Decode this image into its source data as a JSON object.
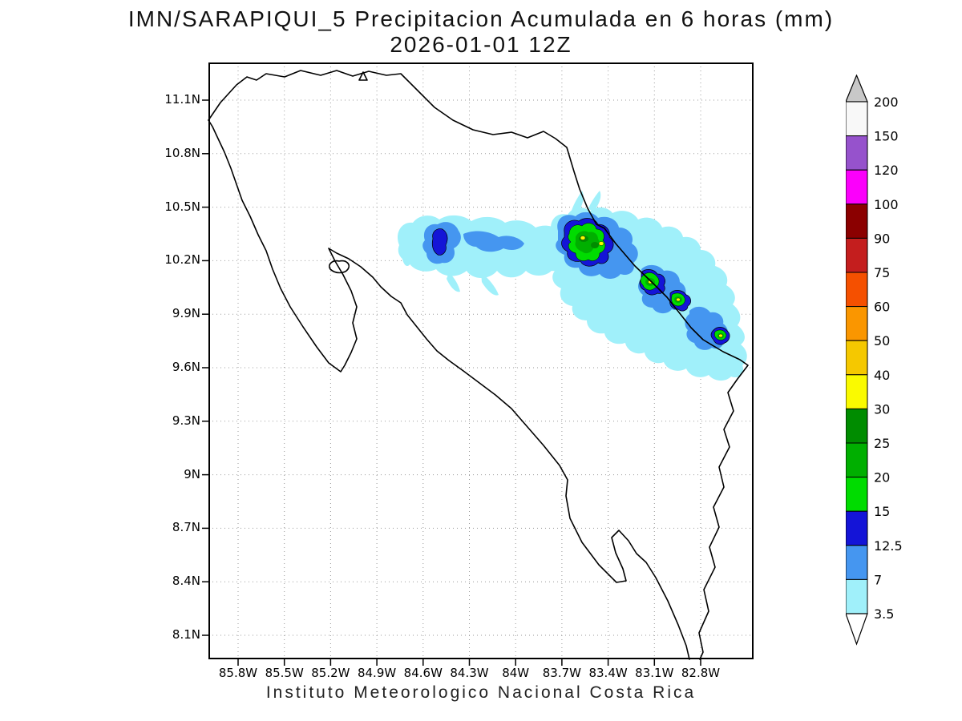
{
  "title": {
    "line1": "IMN/SARAPIQUI_5 Precipitacion Acumulada en 6 horas (mm)",
    "line2": "2026-01-01 12Z"
  },
  "footer": "Instituto Meteorologico Nacional Costa Rica",
  "map": {
    "lat_labels": [
      "11.1N",
      "10.8N",
      "10.5N",
      "10.2N",
      "9.9N",
      "9.6N",
      "9.3N",
      "9N",
      "8.7N",
      "8.4N",
      "8.1N"
    ],
    "lon_labels": [
      "85.8W",
      "85.5W",
      "85.2W",
      "84.9W",
      "84.6W",
      "84.3W",
      "84W",
      "83.7W",
      "83.4W",
      "83.1W",
      "82.8W"
    ]
  },
  "colorbar": {
    "labels_top_to_bottom": [
      "200",
      "150",
      "120",
      "100",
      "90",
      "75",
      "60",
      "50",
      "40",
      "30",
      "25",
      "20",
      "15",
      "12.5",
      "7",
      "3.5"
    ],
    "segment_colors_top_to_bottom": [
      "#F8F8F8",
      "#9652CC",
      "#FB00FB",
      "#8B0000",
      "#C41E1E",
      "#F55000",
      "#FA9600",
      "#F5C800",
      "#FAFA00",
      "#008C00",
      "#00AF00",
      "#00DC00",
      "#1414D7",
      "#4596F0",
      "#A0F0FA"
    ],
    "arrow_top_color": "#C8C8C8",
    "arrow_bottom_color": "#FFFFFF"
  },
  "chart_data": {
    "type": "filled-contour-map",
    "title": "IMN/SARAPIQUI_5 Precipitacion Acumulada en 6 horas (mm)",
    "valid_time": "2026-01-01 12Z",
    "source_caption": "Instituto Meteorologico Nacional Costa Rica",
    "lon_ticks_W": [
      85.8,
      85.5,
      85.2,
      84.9,
      84.6,
      84.3,
      84.0,
      83.7,
      83.4,
      83.1,
      82.8
    ],
    "lat_ticks_N": [
      11.1,
      10.8,
      10.5,
      10.2,
      9.9,
      9.6,
      9.3,
      9.0,
      8.7,
      8.4,
      8.1
    ],
    "contour_levels_mm": [
      3.5,
      7,
      12.5,
      15,
      20,
      25,
      30,
      40,
      50,
      60,
      75,
      90,
      100,
      120,
      150,
      200
    ],
    "observed_shaded_levels_mm": [
      3.5,
      7,
      12.5,
      15,
      20,
      25,
      30
    ],
    "grid": "dotted",
    "legend_position": "right"
  }
}
